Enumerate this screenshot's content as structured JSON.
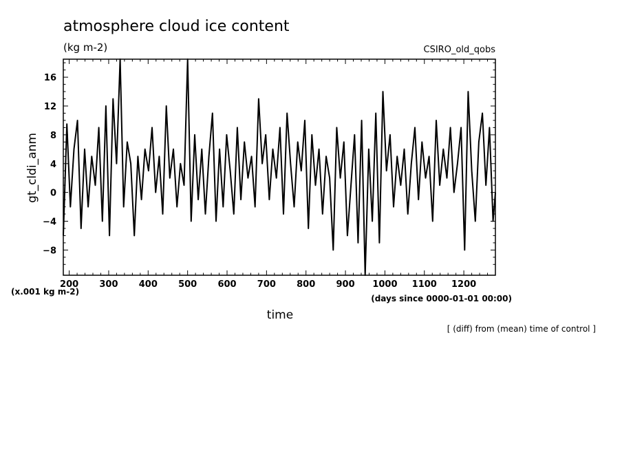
{
  "chart_data": {
    "type": "line",
    "title": "atmosphere cloud ice content",
    "units_label": "(kg m-2)",
    "model_label": "CSIRO_old_qobs",
    "ylabel": "gt_cldi_anm",
    "y_scale_note": "(x.001 kg m-2)",
    "xlabel": "time",
    "x_units_note": "(days since 0000-01-01 00:00)",
    "footnote": "[ (diff) from (mean) time of control ]",
    "xlim": [
      185,
      1280
    ],
    "ylim": [
      -11.5,
      18.5
    ],
    "xticks": [
      200,
      300,
      400,
      500,
      600,
      700,
      800,
      900,
      1000,
      1100,
      1200
    ],
    "yticks": [
      -8,
      -4,
      0,
      4,
      8,
      12,
      16
    ],
    "ytick_labels": [
      "−8",
      "−4",
      "0",
      "4",
      "8",
      "12",
      "16"
    ],
    "grid": false,
    "series": [
      {
        "color": "#000000",
        "x": [
          185,
          194,
          203,
          212,
          221,
          230,
          239,
          248,
          257,
          266,
          275,
          284,
          293,
          302,
          311,
          320,
          329,
          338,
          347,
          356,
          365,
          374,
          383,
          392,
          401,
          410,
          419,
          428,
          437,
          446,
          455,
          464,
          473,
          482,
          491,
          500,
          509,
          518,
          527,
          536,
          545,
          554,
          563,
          572,
          581,
          590,
          599,
          608,
          617,
          626,
          635,
          644,
          653,
          662,
          671,
          680,
          689,
          698,
          707,
          716,
          725,
          734,
          743,
          752,
          761,
          770,
          779,
          788,
          797,
          806,
          815,
          824,
          833,
          842,
          851,
          860,
          869,
          878,
          887,
          896,
          905,
          914,
          923,
          932,
          941,
          950,
          959,
          968,
          977,
          986,
          995,
          1004,
          1013,
          1022,
          1031,
          1040,
          1049,
          1058,
          1067,
          1076,
          1085,
          1094,
          1103,
          1112,
          1121,
          1130,
          1139,
          1148,
          1157,
          1166,
          1175,
          1184,
          1193,
          1202,
          1211,
          1220,
          1229,
          1238,
          1247,
          1256,
          1265,
          1274,
          1280
        ],
        "y": [
          -6,
          9.5,
          -2,
          6,
          10,
          -5,
          6,
          -2,
          5,
          1,
          9,
          -4,
          12,
          -6,
          13,
          4,
          18.5,
          -2,
          7,
          4,
          -6,
          5,
          -1,
          6,
          3,
          9,
          0,
          5,
          -3,
          12,
          2,
          6,
          -2,
          4,
          1,
          18.5,
          -4,
          8,
          -1,
          6,
          -3,
          5,
          11,
          -4,
          6,
          -2,
          8,
          3,
          -3,
          9,
          -1,
          7,
          2,
          5,
          -2,
          13,
          4,
          8,
          -1,
          6,
          2,
          9,
          -3,
          11,
          4,
          -2,
          7,
          3,
          10,
          -5,
          8,
          1,
          6,
          -3,
          5,
          2,
          -8,
          9,
          2,
          7,
          -6,
          1,
          8,
          -7,
          10,
          -11.5,
          6,
          -4,
          11,
          -7,
          14,
          3,
          8,
          -2,
          5,
          1,
          6,
          -3,
          4,
          9,
          -1,
          7,
          2,
          5,
          -4,
          10,
          1,
          6,
          2,
          9,
          0,
          4,
          9,
          -8,
          14,
          3,
          -4,
          7,
          11,
          1,
          9,
          -4,
          0
        ]
      }
    ]
  }
}
